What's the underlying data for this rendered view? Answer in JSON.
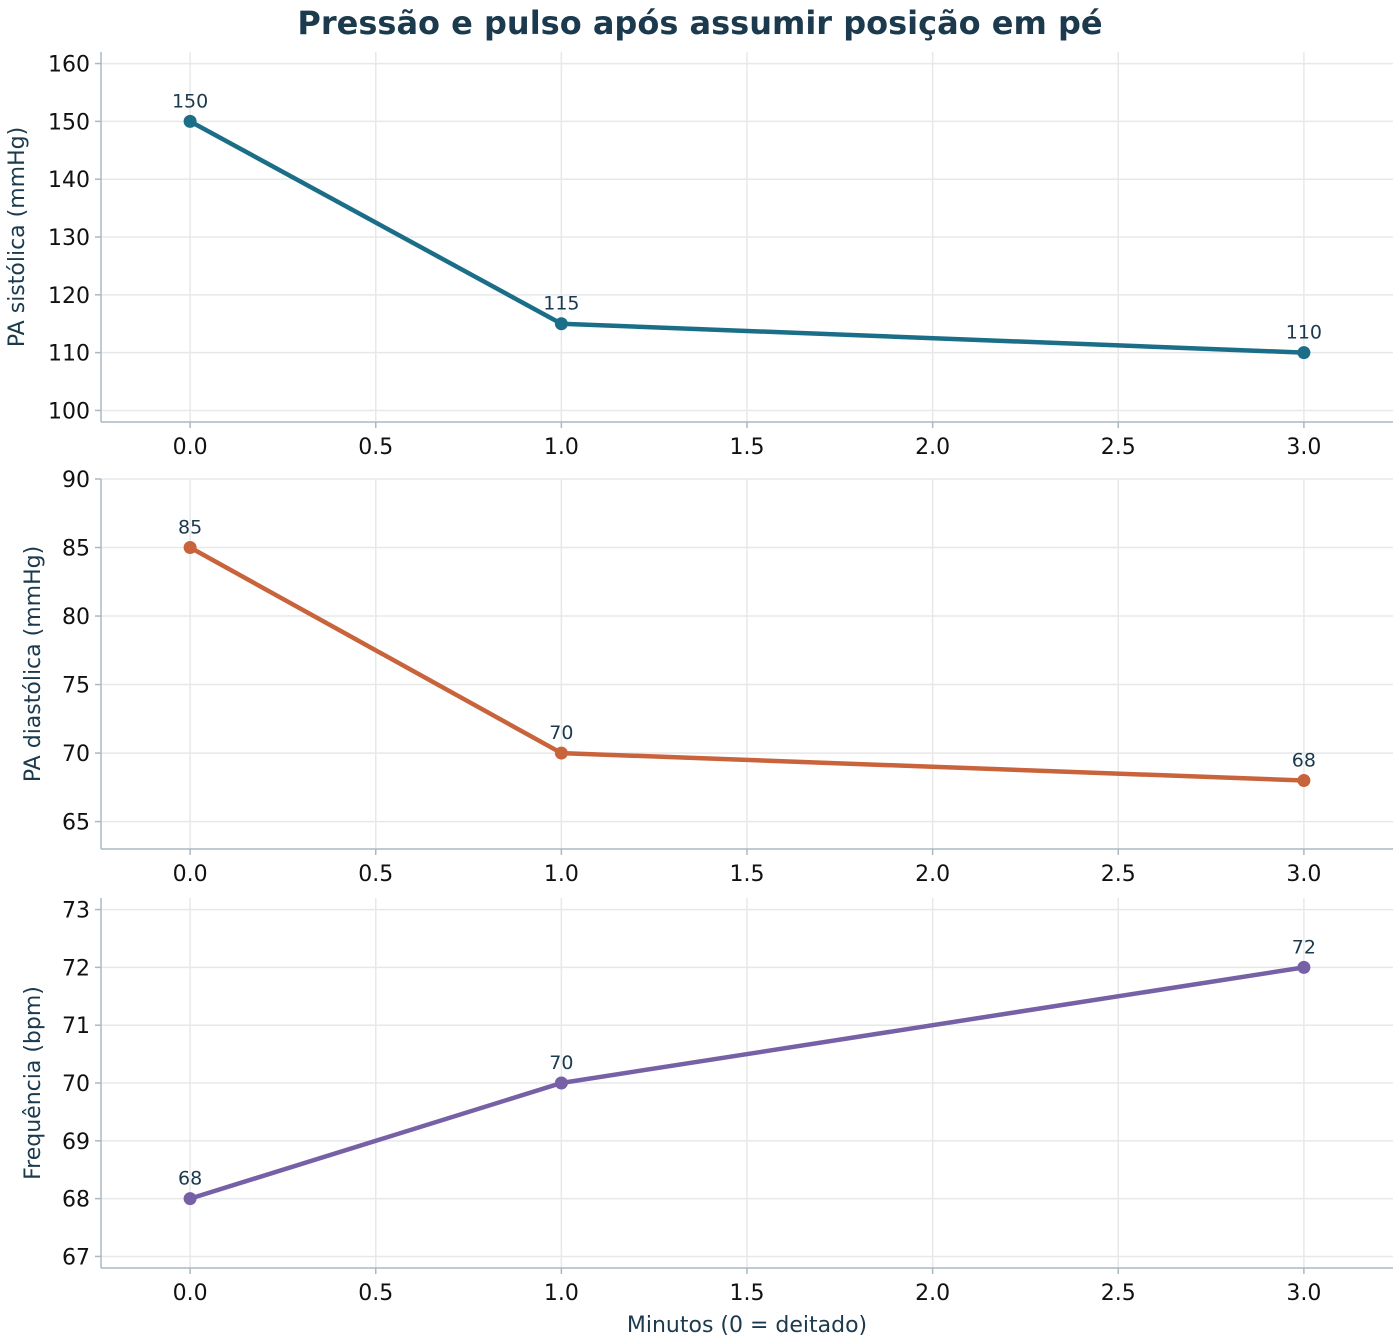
{
  "title": "Pressão e pulso após assumir posição em pé",
  "chart_data": [
    {
      "type": "line",
      "x": [
        0,
        1,
        3
      ],
      "values": [
        150,
        115,
        110
      ],
      "data_labels": [
        "150",
        "115",
        "110"
      ],
      "ylabel": "PA sistólica (mmHg)",
      "xlabel": "",
      "xlim": [
        -0.24,
        3.24
      ],
      "ylim": [
        98,
        162
      ],
      "xticks": [
        0.0,
        0.5,
        1.0,
        1.5,
        2.0,
        2.5,
        3.0
      ],
      "xtick_labels": [
        "0.0",
        "0.5",
        "1.0",
        "1.5",
        "2.0",
        "2.5",
        "3.0"
      ],
      "yticks": [
        100,
        110,
        120,
        130,
        140,
        150,
        160
      ],
      "ytick_labels": [
        "100",
        "110",
        "120",
        "130",
        "140",
        "150",
        "160"
      ],
      "color": "#1b6e87",
      "grid": true
    },
    {
      "type": "line",
      "x": [
        0,
        1,
        3
      ],
      "values": [
        85,
        70,
        68
      ],
      "data_labels": [
        "85",
        "70",
        "68"
      ],
      "ylabel": "PA diastólica (mmHg)",
      "xlabel": "",
      "xlim": [
        -0.24,
        3.24
      ],
      "ylim": [
        63,
        90
      ],
      "xticks": [
        0.0,
        0.5,
        1.0,
        1.5,
        2.0,
        2.5,
        3.0
      ],
      "xtick_labels": [
        "0.0",
        "0.5",
        "1.0",
        "1.5",
        "2.0",
        "2.5",
        "3.0"
      ],
      "yticks": [
        65,
        70,
        75,
        80,
        85,
        90
      ],
      "ytick_labels": [
        "65",
        "70",
        "75",
        "80",
        "85",
        "90"
      ],
      "color": "#c9633c",
      "grid": true
    },
    {
      "type": "line",
      "x": [
        0,
        1,
        3
      ],
      "values": [
        68,
        70,
        72
      ],
      "data_labels": [
        "68",
        "70",
        "72"
      ],
      "ylabel": "Frequência (bpm)",
      "xlabel": "Minutos (0 = deitado)",
      "xlim": [
        -0.24,
        3.24
      ],
      "ylim": [
        66.8,
        73.2
      ],
      "xticks": [
        0.0,
        0.5,
        1.0,
        1.5,
        2.0,
        2.5,
        3.0
      ],
      "xtick_labels": [
        "0.0",
        "0.5",
        "1.0",
        "1.5",
        "2.0",
        "2.5",
        "3.0"
      ],
      "yticks": [
        67,
        68,
        69,
        70,
        71,
        72,
        73
      ],
      "ytick_labels": [
        "67",
        "68",
        "69",
        "70",
        "71",
        "72",
        "73"
      ],
      "color": "#7660a6",
      "grid": true
    }
  ]
}
